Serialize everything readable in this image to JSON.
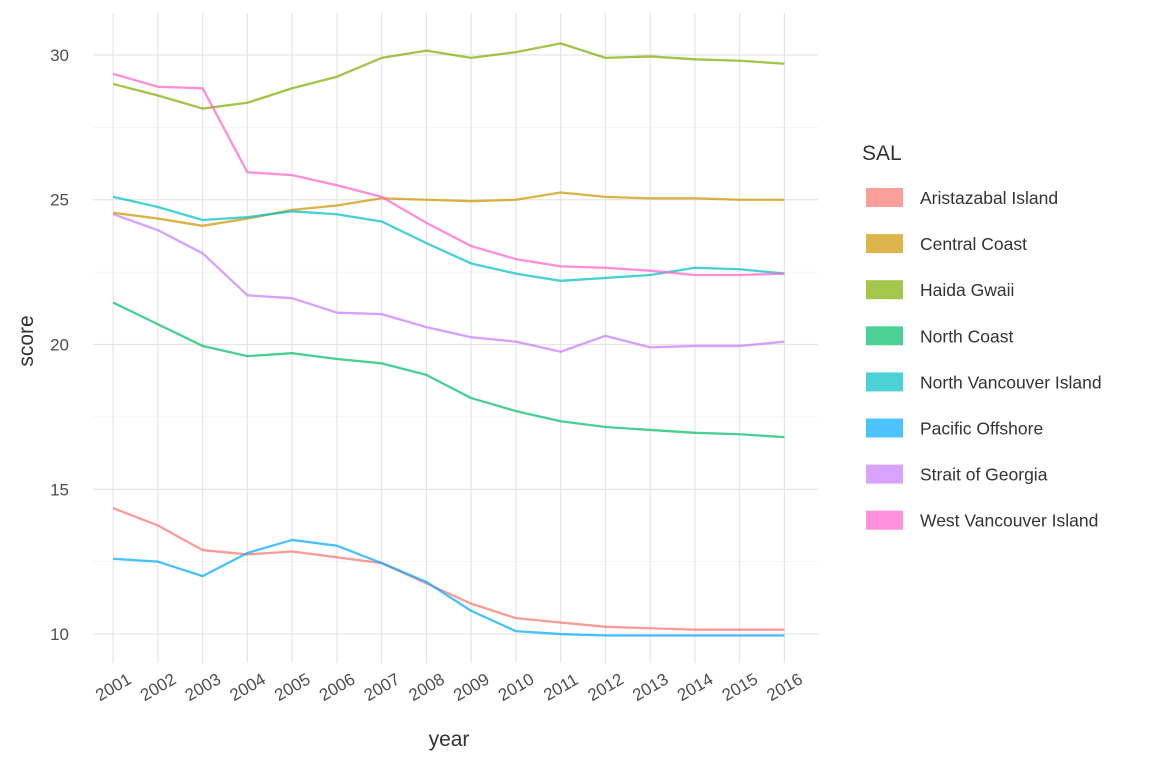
{
  "chart_data": {
    "type": "line",
    "xlabel": "year",
    "ylabel": "score",
    "x": [
      "2001",
      "2002",
      "2003",
      "2004",
      "2005",
      "2006",
      "2007",
      "2008",
      "2009",
      "2010",
      "2011",
      "2012",
      "2013",
      "2014",
      "2015",
      "2016"
    ],
    "xlim": [
      2000.55,
      2016.75
    ],
    "ylim": [
      9.0,
      31.45
    ],
    "yticks": [
      10,
      15,
      20,
      25,
      30
    ],
    "grid": true,
    "legend": {
      "title": "SAL",
      "position": "right"
    },
    "series": [
      {
        "name": "Aristazabal Island",
        "color": "#F8766D",
        "values": [
          14.35,
          13.75,
          12.9,
          12.75,
          12.85,
          12.65,
          12.45,
          11.75,
          11.05,
          10.55,
          10.4,
          10.25,
          10.2,
          10.15,
          10.15,
          10.15
        ]
      },
      {
        "name": "Central Coast",
        "color": "#CD9600",
        "values": [
          24.55,
          24.35,
          24.1,
          24.35,
          24.65,
          24.8,
          25.05,
          25.0,
          24.95,
          25.0,
          25.25,
          25.1,
          25.05,
          25.05,
          25.0,
          25.0
        ]
      },
      {
        "name": "Haida Gwaii",
        "color": "#7CAE00",
        "values": [
          29.0,
          28.6,
          28.15,
          28.35,
          28.85,
          29.25,
          29.9,
          30.15,
          29.9,
          30.1,
          30.4,
          29.9,
          29.95,
          29.85,
          29.8,
          29.7
        ]
      },
      {
        "name": "North Coast",
        "color": "#00BE67",
        "values": [
          21.45,
          20.7,
          19.95,
          19.6,
          19.7,
          19.5,
          19.35,
          18.95,
          18.15,
          17.7,
          17.35,
          17.15,
          17.05,
          16.95,
          16.9,
          16.8
        ]
      },
      {
        "name": "North Vancouver Island",
        "color": "#00BFC4",
        "values": [
          25.1,
          24.75,
          24.3,
          24.4,
          24.6,
          24.5,
          24.25,
          23.5,
          22.8,
          22.45,
          22.2,
          22.3,
          22.4,
          22.65,
          22.6,
          22.45
        ]
      },
      {
        "name": "Pacific Offshore",
        "color": "#00A9FF",
        "values": [
          12.6,
          12.5,
          12.0,
          12.8,
          13.25,
          13.05,
          12.45,
          11.8,
          10.8,
          10.1,
          10.0,
          9.95,
          9.95,
          9.95,
          9.95,
          9.95
        ]
      },
      {
        "name": "Strait of Georgia",
        "color": "#C77CFF",
        "values": [
          24.5,
          23.95,
          23.15,
          21.7,
          21.6,
          21.1,
          21.05,
          20.6,
          20.25,
          20.1,
          19.75,
          20.3,
          19.9,
          19.95,
          19.95,
          20.1
        ]
      },
      {
        "name": "West Vancouver Island",
        "color": "#FF61CC",
        "values": [
          29.35,
          28.9,
          28.85,
          25.95,
          25.85,
          25.5,
          25.1,
          24.2,
          23.4,
          22.95,
          22.7,
          22.65,
          22.55,
          22.4,
          22.4,
          22.45
        ]
      }
    ]
  }
}
